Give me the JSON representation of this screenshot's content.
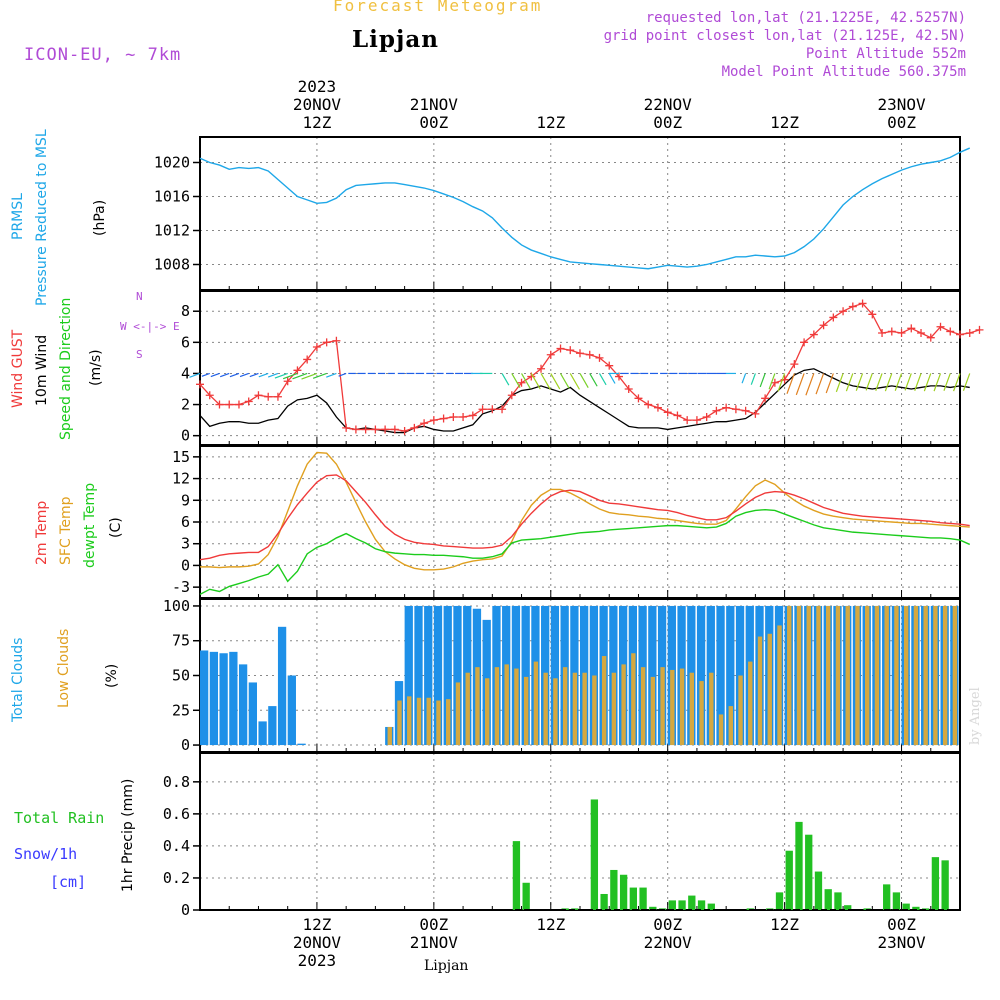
{
  "header": {
    "title": "Forecast Meteogram",
    "location": "Lipjan",
    "model": "ICON-EU, ~ 7km",
    "requested": "requested lon,lat (21.1225E, 42.5257N)",
    "grid": "grid point closest lon,lat (21.125E, 42.5N)",
    "point_alt": "Point Altitude 552m",
    "model_alt": "Model Point Altitude 560.375m",
    "watermark": "by Angel",
    "footer": "Lipjan"
  },
  "panel_labels": {
    "prmsl": [
      "PRMSL",
      "Pressure Reduced to MSL"
    ],
    "prmsl_unit": "(hPa)",
    "wind": [
      "Wind GUST",
      "10m Wind",
      "Speed and Direction"
    ],
    "wind_unit": "(m/s)",
    "compass": [
      "N",
      "^",
      "|",
      "W <-|-> E",
      "|",
      "v",
      "S"
    ],
    "temp": [
      "2m Temp",
      "SFC Temp",
      "dewpt Temp"
    ],
    "temp_unit": "(C)",
    "cloud": [
      "Total Clouds",
      "Low Clouds"
    ],
    "cloud_unit": "(%)",
    "precip_left": [
      "Total  Rain",
      "Snow/1h",
      "[cm]"
    ],
    "precip_unit": "1hr Precip (mm)"
  },
  "colors": {
    "pressure": "#1ea7e8",
    "gust": "#f03a3a",
    "wind": "#000000",
    "temp2m": "#f03a3a",
    "sfc": "#e0a020",
    "dewpt": "#1ccc1c",
    "total_cloud": "#1e90e8",
    "low_cloud": "#d4a840",
    "rain": "#22c022",
    "snow": "#3a3aff",
    "label_purple": "#b04bd6",
    "label_orange": "#f0c040"
  },
  "chart_data": {
    "type": "meteogram",
    "time": {
      "start_hour": 0,
      "end_hour": 78,
      "major_ticks": [
        {
          "hour": 12,
          "top": [
            "2023",
            "20NOV",
            "12Z"
          ],
          "bottom": [
            "12Z",
            "20NOV",
            "2023"
          ]
        },
        {
          "hour": 24,
          "top": [
            "21NOV",
            "00Z"
          ],
          "bottom": [
            "00Z",
            "21NOV"
          ]
        },
        {
          "hour": 36,
          "top": [
            "12Z"
          ],
          "bottom": [
            "12Z"
          ]
        },
        {
          "hour": 48,
          "top": [
            "22NOV",
            "00Z"
          ],
          "bottom": [
            "00Z",
            "22NOV"
          ]
        },
        {
          "hour": 60,
          "top": [
            "12Z"
          ],
          "bottom": [
            "12Z"
          ]
        },
        {
          "hour": 72,
          "top": [
            "23NOV",
            "00Z"
          ],
          "bottom": [
            "00Z",
            "23NOV"
          ]
        }
      ]
    },
    "pressure": {
      "ylim": [
        1005,
        1023
      ],
      "ticks": [
        1008,
        1012,
        1016,
        1020
      ],
      "values": [
        1020.5,
        1020.0,
        1019.7,
        1019.2,
        1019.4,
        1019.3,
        1019.4,
        1019.0,
        1018.0,
        1017.0,
        1016.0,
        1015.6,
        1015.2,
        1015.3,
        1015.8,
        1016.8,
        1017.3,
        1017.4,
        1017.5,
        1017.6,
        1017.6,
        1017.4,
        1017.2,
        1017.0,
        1016.7,
        1016.3,
        1015.9,
        1015.4,
        1014.8,
        1014.3,
        1013.5,
        1012.3,
        1011.2,
        1010.3,
        1009.7,
        1009.3,
        1008.9,
        1008.6,
        1008.3,
        1008.2,
        1008.1,
        1008.0,
        1007.9,
        1007.8,
        1007.7,
        1007.6,
        1007.5,
        1007.7,
        1007.9,
        1007.8,
        1007.7,
        1007.8,
        1008.0,
        1008.3,
        1008.6,
        1008.9,
        1008.9,
        1009.1,
        1009.0,
        1008.9,
        1009.0,
        1009.4,
        1010.1,
        1011.0,
        1012.2,
        1013.6,
        1015.0,
        1016.0,
        1016.8,
        1017.5,
        1018.1,
        1018.6,
        1019.1,
        1019.5,
        1019.8,
        1020.0,
        1020.2,
        1020.6,
        1021.2,
        1021.7
      ]
    },
    "wind": {
      "ylim": [
        -0.6,
        9.3
      ],
      "ticks": [
        0,
        2,
        4,
        6,
        8
      ],
      "speed": [
        1.3,
        0.6,
        0.8,
        0.9,
        0.9,
        0.8,
        0.8,
        1.0,
        1.1,
        1.9,
        2.3,
        2.4,
        2.6,
        2.1,
        1.2,
        0.5,
        0.4,
        0.5,
        0.4,
        0.3,
        0.2,
        0.2,
        0.5,
        0.6,
        0.4,
        0.3,
        0.3,
        0.5,
        0.7,
        1.4,
        1.6,
        1.9,
        2.6,
        2.9,
        3.0,
        3.2,
        3.0,
        2.8,
        3.1,
        2.6,
        2.2,
        1.8,
        1.4,
        1.0,
        0.6,
        0.5,
        0.5,
        0.5,
        0.4,
        0.5,
        0.6,
        0.7,
        0.8,
        0.9,
        0.9,
        1.0,
        1.1,
        1.5,
        2.1,
        2.7,
        3.3,
        3.9,
        4.2,
        4.3,
        4.0,
        3.7,
        3.4,
        3.2,
        3.1,
        3.0,
        3.1,
        3.2,
        3.1,
        3.0,
        3.1,
        3.2,
        3.2,
        3.1,
        3.2,
        3.1
      ],
      "gust": [
        3.3,
        2.6,
        2.0,
        2.0,
        2.0,
        2.2,
        2.6,
        2.5,
        2.5,
        3.5,
        4.2,
        4.9,
        5.7,
        6.0,
        6.1,
        0.5,
        0.4,
        0.4,
        0.4,
        0.4,
        0.4,
        0.3,
        0.5,
        0.8,
        1.0,
        1.1,
        1.2,
        1.2,
        1.3,
        1.7,
        1.7,
        1.7,
        2.6,
        3.4,
        3.8,
        4.3,
        5.2,
        5.6,
        5.5,
        5.3,
        5.2,
        5.0,
        4.5,
        3.8,
        3.0,
        2.4,
        2.0,
        1.8,
        1.5,
        1.3,
        1.0,
        1.0,
        1.2,
        1.6,
        1.8,
        1.7,
        1.6,
        1.4,
        2.4,
        3.4,
        3.6,
        4.6,
        6.0,
        6.5,
        7.1,
        7.6,
        8.0,
        8.3,
        8.5,
        7.8,
        6.6,
        6.7,
        6.6,
        6.9,
        6.6,
        6.3,
        7.0,
        6.7,
        6.5,
        6.6,
        6.8
      ]
    },
    "temperature": {
      "ylim": [
        -4.5,
        16.5
      ],
      "ticks": [
        -3,
        0,
        3,
        6,
        9,
        12,
        15
      ],
      "t2m": [
        0.8,
        1.0,
        1.4,
        1.6,
        1.7,
        1.8,
        1.8,
        2.6,
        4.4,
        6.5,
        8.4,
        10.0,
        11.5,
        12.4,
        12.5,
        11.7,
        10.2,
        8.7,
        7.0,
        5.4,
        4.3,
        3.6,
        3.2,
        3.0,
        2.9,
        2.7,
        2.6,
        2.5,
        2.4,
        2.4,
        2.5,
        2.8,
        4.0,
        5.7,
        7.2,
        8.5,
        9.6,
        10.2,
        10.4,
        10.2,
        9.6,
        9.0,
        8.6,
        8.5,
        8.3,
        8.1,
        7.9,
        7.7,
        7.6,
        7.3,
        6.9,
        6.6,
        6.3,
        6.3,
        6.6,
        7.5,
        8.5,
        9.4,
        10.0,
        10.2,
        10.1,
        9.7,
        9.2,
        8.6,
        8.0,
        7.6,
        7.2,
        7.0,
        6.8,
        6.7,
        6.6,
        6.5,
        6.4,
        6.3,
        6.2,
        6.1,
        5.9,
        5.8,
        5.7,
        5.5
      ],
      "sfc": [
        -0.2,
        -0.2,
        -0.3,
        -0.2,
        -0.2,
        -0.1,
        0.2,
        1.5,
        4.0,
        7.5,
        11.0,
        14.0,
        15.6,
        15.5,
        14.0,
        11.5,
        8.7,
        6.0,
        3.6,
        1.9,
        0.9,
        0.1,
        -0.4,
        -0.6,
        -0.6,
        -0.5,
        -0.2,
        0.3,
        0.6,
        0.8,
        0.9,
        1.3,
        3.3,
        6.2,
        8.3,
        9.7,
        10.5,
        10.5,
        10.0,
        9.3,
        8.5,
        7.8,
        7.3,
        7.1,
        7.0,
        6.8,
        6.7,
        6.5,
        6.4,
        6.2,
        6.0,
        5.8,
        5.7,
        5.7,
        6.2,
        7.8,
        9.5,
        11.0,
        11.8,
        11.2,
        10.0,
        9.0,
        8.2,
        7.6,
        7.1,
        6.8,
        6.6,
        6.4,
        6.3,
        6.2,
        6.1,
        6.0,
        5.9,
        5.8,
        5.8,
        5.7,
        5.6,
        5.5,
        5.4,
        5.3
      ],
      "dewpt": [
        -4.0,
        -3.3,
        -3.6,
        -2.9,
        -2.5,
        -2.1,
        -1.6,
        -1.2,
        0.1,
        -2.2,
        -0.8,
        1.6,
        2.5,
        3.0,
        3.8,
        4.4,
        3.7,
        3.1,
        2.3,
        1.9,
        1.7,
        1.6,
        1.5,
        1.5,
        1.4,
        1.4,
        1.3,
        1.2,
        1.0,
        1.0,
        1.2,
        1.6,
        3.1,
        3.5,
        3.6,
        3.7,
        3.9,
        4.1,
        4.3,
        4.5,
        4.6,
        4.7,
        4.9,
        5.0,
        5.1,
        5.2,
        5.3,
        5.4,
        5.5,
        5.5,
        5.4,
        5.3,
        5.2,
        5.3,
        5.8,
        6.8,
        7.3,
        7.6,
        7.7,
        7.6,
        7.1,
        6.6,
        6.1,
        5.6,
        5.2,
        5.0,
        4.8,
        4.6,
        4.5,
        4.4,
        4.3,
        4.2,
        4.1,
        4.0,
        3.9,
        3.8,
        3.8,
        3.7,
        3.5,
        2.9
      ]
    },
    "clouds": {
      "ylim": [
        -5,
        105
      ],
      "ticks": [
        0,
        25,
        50,
        75,
        100
      ],
      "total": [
        68,
        67,
        66,
        67,
        58,
        45,
        17,
        28,
        85,
        50,
        1,
        0,
        0,
        0,
        0,
        0,
        0,
        0,
        0,
        13,
        46,
        100,
        100,
        100,
        100,
        100,
        100,
        100,
        98,
        90,
        100,
        100,
        100,
        100,
        100,
        100,
        100,
        100,
        100,
        100,
        100,
        100,
        100,
        100,
        100,
        100,
        100,
        100,
        100,
        100,
        100,
        100,
        100,
        100,
        100,
        100,
        100,
        100,
        100,
        100,
        100,
        100,
        100,
        100,
        100,
        100,
        100,
        100,
        100,
        100,
        100,
        100,
        100,
        100,
        100,
        100,
        100,
        100
      ],
      "low": [
        0,
        0,
        0,
        0,
        0,
        0,
        0,
        0,
        0,
        0,
        0,
        0,
        0,
        0,
        0,
        0,
        0,
        0,
        0,
        13,
        32,
        35,
        34,
        34,
        32,
        33,
        45,
        52,
        56,
        48,
        56,
        58,
        55,
        49,
        60,
        52,
        48,
        56,
        52,
        52,
        50,
        64,
        52,
        58,
        66,
        56,
        49,
        56,
        54,
        55,
        52,
        46,
        52,
        22,
        28,
        50,
        60,
        78,
        80,
        86,
        100,
        100,
        100,
        100,
        100,
        100,
        100,
        100,
        100,
        100,
        100,
        100,
        100,
        100,
        100,
        100,
        100,
        100
      ]
    },
    "precip": {
      "ylim": [
        0,
        0.98
      ],
      "ticks": [
        0,
        0.2,
        0.4,
        0.6,
        0.8
      ],
      "rain": [
        0,
        0,
        0,
        0,
        0,
        0,
        0,
        0,
        0,
        0,
        0,
        0,
        0,
        0,
        0,
        0,
        0,
        0,
        0,
        0,
        0,
        0,
        0,
        0,
        0,
        0,
        0,
        0,
        0,
        0,
        0,
        0,
        0.43,
        0.17,
        0,
        0,
        0,
        0.01,
        0.01,
        0,
        0.69,
        0.1,
        0.25,
        0.22,
        0.14,
        0.14,
        0.02,
        0.01,
        0.06,
        0.06,
        0.09,
        0.06,
        0.04,
        0,
        0,
        0,
        0.01,
        0,
        0.01,
        0.11,
        0.37,
        0.55,
        0.47,
        0.24,
        0.13,
        0.11,
        0.03,
        0,
        0.01,
        0,
        0.16,
        0.11,
        0.04,
        0.02,
        0.01,
        0.33,
        0.31
      ],
      "snow": []
    }
  }
}
